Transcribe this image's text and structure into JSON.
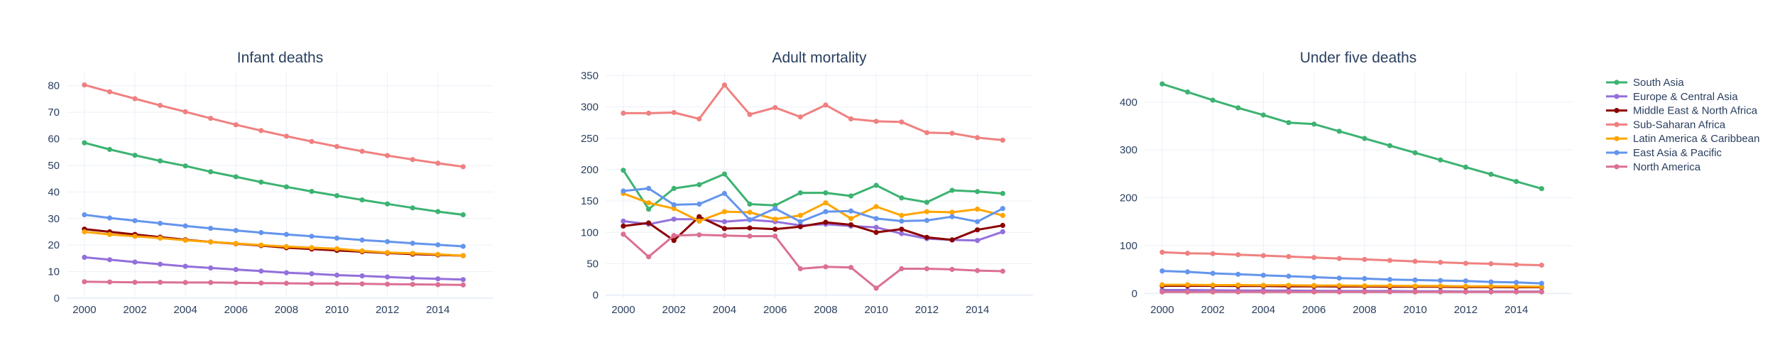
{
  "chart_data": [
    {
      "type": "line",
      "title": "Infant deaths",
      "xlabel": "",
      "ylabel": "",
      "x": [
        2000,
        2001,
        2002,
        2003,
        2004,
        2005,
        2006,
        2007,
        2008,
        2009,
        2010,
        2011,
        2012,
        2013,
        2014,
        2015
      ],
      "xlim": [
        1999.3,
        2016.2
      ],
      "ylim": [
        0,
        85
      ],
      "xticks": [
        2000,
        2002,
        2004,
        2006,
        2008,
        2010,
        2012,
        2014
      ],
      "yticks": [
        0,
        10,
        20,
        30,
        40,
        50,
        60,
        70,
        80
      ],
      "grid": true,
      "series": [
        {
          "name": "South Asia",
          "color": "#3cb371",
          "values": [
            58.5,
            56,
            53.8,
            51.7,
            49.8,
            47.6,
            45.7,
            43.7,
            41.9,
            40.2,
            38.6,
            37,
            35.5,
            34,
            32.6,
            31.4
          ]
        },
        {
          "name": "Europe & Central Asia",
          "color": "#9370db",
          "values": [
            15.4,
            14.5,
            13.6,
            12.8,
            12,
            11.4,
            10.8,
            10.2,
            9.6,
            9.2,
            8.7,
            8.4,
            8,
            7.6,
            7.3,
            7
          ]
        },
        {
          "name": "Middle East & North Africa",
          "color": "#8b0000",
          "values": [
            26,
            25,
            24,
            23,
            22,
            21.2,
            20.5,
            19.8,
            19,
            18.5,
            18,
            17.5,
            17,
            16.6,
            16.3,
            16
          ]
        },
        {
          "name": "Sub-Saharan Africa",
          "color": "#f08080",
          "values": [
            80.3,
            77.7,
            75.1,
            72.6,
            70.2,
            67.7,
            65.3,
            63.1,
            61,
            59,
            57.1,
            55.3,
            53.7,
            52.2,
            50.8,
            49.5
          ]
        },
        {
          "name": "Latin America & Caribbean",
          "color": "#ffa500",
          "values": [
            25,
            24,
            23.3,
            22.6,
            21.8,
            21.2,
            20.6,
            20,
            19.4,
            19,
            18.6,
            17.8,
            17.2,
            16.9,
            16.5,
            16
          ]
        },
        {
          "name": "East Asia & Pacific",
          "color": "#6495ed",
          "values": [
            31.4,
            30.2,
            29.2,
            28.2,
            27.2,
            26.3,
            25.5,
            24.7,
            24,
            23.3,
            22.6,
            21.9,
            21.3,
            20.7,
            20.1,
            19.5
          ]
        },
        {
          "name": "North America",
          "color": "#db7093",
          "values": [
            6.2,
            6.1,
            6,
            6,
            5.9,
            5.9,
            5.8,
            5.7,
            5.6,
            5.5,
            5.5,
            5.4,
            5.3,
            5.2,
            5.1,
            5
          ]
        }
      ]
    },
    {
      "type": "line",
      "title": "Adult mortality",
      "xlabel": "",
      "ylabel": "",
      "x": [
        2000,
        2001,
        2002,
        2003,
        2004,
        2005,
        2006,
        2007,
        2008,
        2009,
        2010,
        2011,
        2012,
        2013,
        2014,
        2015
      ],
      "xlim": [
        1999.3,
        2016.2
      ],
      "ylim": [
        -5,
        355
      ],
      "xticks": [
        2000,
        2002,
        2004,
        2006,
        2008,
        2010,
        2012,
        2014
      ],
      "yticks": [
        0,
        50,
        100,
        150,
        200,
        250,
        300,
        350
      ],
      "grid": true,
      "series": [
        {
          "name": "South Asia",
          "color": "#3cb371",
          "values": [
            199,
            137,
            170,
            176,
            193,
            145,
            143,
            163,
            163,
            158,
            175,
            155,
            148,
            167,
            165,
            162
          ]
        },
        {
          "name": "Europe & Central Asia",
          "color": "#9370db",
          "values": [
            118,
            113,
            121,
            121,
            117,
            120,
            117,
            111,
            113,
            110,
            108,
            98,
            90,
            88,
            87,
            101
          ]
        },
        {
          "name": "Middle East & North Africa",
          "color": "#8b0000",
          "values": [
            110,
            115,
            87,
            125,
            106,
            107,
            105,
            109,
            116,
            112,
            100,
            105,
            92,
            88,
            104,
            111
          ]
        },
        {
          "name": "Sub-Saharan Africa",
          "color": "#f08080",
          "values": [
            290,
            290,
            291,
            281,
            335,
            288,
            299,
            284,
            303,
            281,
            277,
            276,
            259,
            258,
            251,
            247
          ]
        },
        {
          "name": "Latin America & Caribbean",
          "color": "#ffa500",
          "values": [
            162,
            147,
            138,
            118,
            133,
            132,
            121,
            127,
            147,
            122,
            141,
            127,
            133,
            132,
            137,
            127
          ]
        },
        {
          "name": "East Asia & Pacific",
          "color": "#6495ed",
          "values": [
            166,
            170,
            144,
            145,
            162,
            120,
            138,
            117,
            133,
            134,
            122,
            118,
            119,
            125,
            117,
            138
          ]
        },
        {
          "name": "North America",
          "color": "#db7093",
          "values": [
            97,
            61,
            95,
            96,
            95,
            94,
            94,
            42,
            45,
            44,
            11,
            42,
            42,
            41,
            39,
            38
          ]
        }
      ]
    },
    {
      "type": "line",
      "title": "Under five deaths",
      "xlabel": "",
      "ylabel": "",
      "x": [
        2000,
        2001,
        2002,
        2003,
        2004,
        2005,
        2006,
        2007,
        2008,
        2009,
        2010,
        2011,
        2012,
        2013,
        2014,
        2015
      ],
      "xlim": [
        1999.3,
        2016.2
      ],
      "ylim": [
        -10,
        462
      ],
      "xticks": [
        2000,
        2002,
        2004,
        2006,
        2008,
        2010,
        2012,
        2014
      ],
      "yticks": [
        0,
        100,
        200,
        300,
        400
      ],
      "grid": true,
      "series": [
        {
          "name": "South Asia",
          "color": "#3cb371",
          "values": [
            438,
            421,
            404,
            388,
            373,
            357,
            354,
            339,
            324,
            309,
            294,
            279,
            264,
            249,
            234,
            219
          ]
        },
        {
          "name": "Europe & Central Asia",
          "color": "#9370db",
          "values": [
            7,
            7,
            6.5,
            6,
            6,
            6,
            5.5,
            5,
            5,
            5,
            4.5,
            4.5,
            4,
            4,
            4,
            4
          ]
        },
        {
          "name": "Middle East & North Africa",
          "color": "#8b0000",
          "values": [
            16,
            16,
            16,
            15.5,
            15.5,
            15,
            15,
            14.5,
            14.5,
            14,
            14,
            14,
            13.5,
            13.5,
            13,
            13
          ]
        },
        {
          "name": "Sub-Saharan Africa",
          "color": "#f08080",
          "values": [
            86,
            84,
            83,
            81,
            79,
            77,
            75,
            73,
            71,
            69,
            67,
            65,
            63,
            62,
            60,
            59
          ]
        },
        {
          "name": "Latin America & Caribbean",
          "color": "#ffa500",
          "values": [
            18,
            18,
            17.5,
            17.5,
            17,
            17,
            16.5,
            16.5,
            16,
            16,
            15.5,
            15.5,
            15,
            15,
            14.5,
            14
          ]
        },
        {
          "name": "East Asia & Pacific",
          "color": "#6495ed",
          "values": [
            47,
            45,
            42,
            40,
            38,
            36,
            34,
            32,
            31,
            29,
            28,
            27,
            26,
            24,
            23,
            21
          ]
        },
        {
          "name": "North America",
          "color": "#db7093",
          "values": [
            3,
            3,
            3,
            3,
            3,
            3,
            3,
            3,
            3,
            3,
            3,
            3,
            3,
            3,
            3,
            3
          ]
        }
      ]
    }
  ],
  "legend": {
    "placement": "top-right",
    "items": [
      {
        "name": "South Asia",
        "color": "#3cb371"
      },
      {
        "name": "Europe & Central Asia",
        "color": "#9370db"
      },
      {
        "name": "Middle East & North Africa",
        "color": "#8b0000"
      },
      {
        "name": "Sub-Saharan Africa",
        "color": "#f08080"
      },
      {
        "name": "Latin America & Caribbean",
        "color": "#ffa500"
      },
      {
        "name": "East Asia & Pacific",
        "color": "#6495ed"
      },
      {
        "name": "North America",
        "color": "#db7093"
      }
    ]
  }
}
